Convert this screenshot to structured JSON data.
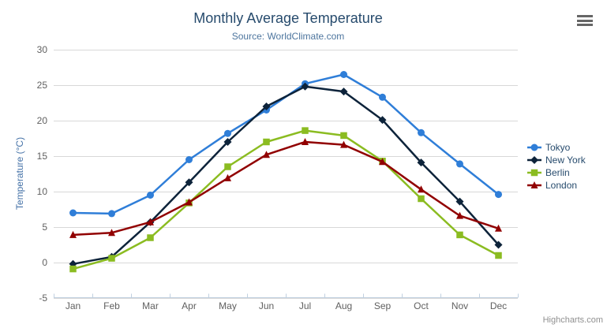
{
  "chart": {
    "title": "Monthly Average Temperature",
    "subtitle": "Source: WorldClimate.com",
    "credits": "Highcharts.com",
    "context_menu_icon": "hamburger-icon"
  },
  "colors": {
    "title": "#274b6d",
    "subtitle": "#4d759e",
    "axis_labels": "#606060",
    "y_axis_title": "#4572a7",
    "gridline": "#d8d8d8",
    "axis_line": "#c0d0e0",
    "legend_text": "#274b6d",
    "credits_text": "#909090"
  },
  "chart_data": {
    "type": "line",
    "title": "Monthly Average Temperature",
    "subtitle": "Source: WorldClimate.com",
    "categories": [
      "Jan",
      "Feb",
      "Mar",
      "Apr",
      "May",
      "Jun",
      "Jul",
      "Aug",
      "Sep",
      "Oct",
      "Nov",
      "Dec"
    ],
    "xlabel": "",
    "ylabel": "Temperature (°C)",
    "ylim": [
      -5,
      30
    ],
    "yticks": [
      -5,
      0,
      5,
      10,
      15,
      20,
      25,
      30
    ],
    "grid": true,
    "legend_position": "right",
    "series": [
      {
        "name": "Tokyo",
        "color": "#2f7ed8",
        "marker": "circle",
        "values": [
          7.0,
          6.9,
          9.5,
          14.5,
          18.2,
          21.5,
          25.2,
          26.5,
          23.3,
          18.3,
          13.9,
          9.6
        ]
      },
      {
        "name": "New York",
        "color": "#0d233a",
        "marker": "diamond",
        "values": [
          -0.2,
          0.8,
          5.7,
          11.3,
          17.0,
          22.0,
          24.8,
          24.1,
          20.1,
          14.1,
          8.6,
          2.5
        ]
      },
      {
        "name": "Berlin",
        "color": "#8bbc21",
        "marker": "square",
        "values": [
          -0.9,
          0.6,
          3.5,
          8.4,
          13.5,
          17.0,
          18.6,
          17.9,
          14.3,
          9.0,
          3.9,
          1.0
        ]
      },
      {
        "name": "London",
        "color": "#910000",
        "marker": "triangle",
        "values": [
          3.9,
          4.2,
          5.7,
          8.5,
          11.9,
          15.2,
          17.0,
          16.6,
          14.2,
          10.3,
          6.6,
          4.8
        ]
      }
    ]
  }
}
